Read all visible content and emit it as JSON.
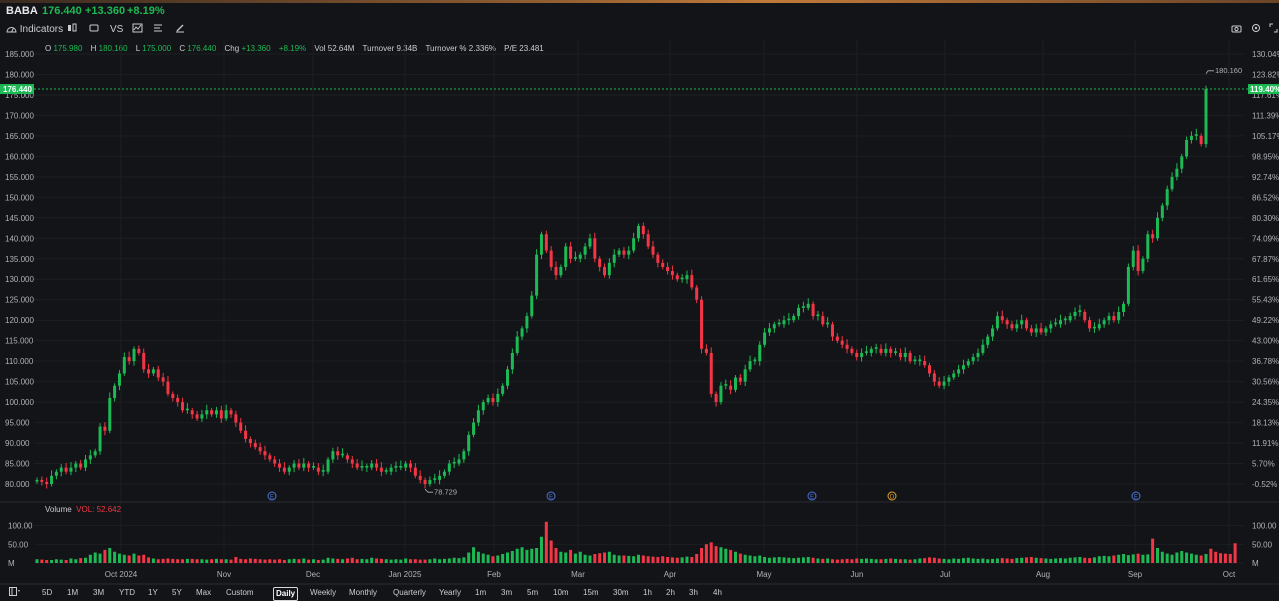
{
  "header": {
    "symbol": "BABA",
    "price": "176.440",
    "change": "+13.360",
    "change_pct": "+8.19%"
  },
  "toolbar": {
    "indicators_label": "Indicators",
    "vs_label": "VS"
  },
  "ohlc": {
    "o_label": "O",
    "o": "175.980",
    "h_label": "H",
    "h": "180.160",
    "l_label": "L",
    "l": "175.000",
    "c_label": "C",
    "c": "176.440",
    "chg_label": "Chg",
    "chg": "+13.360",
    "chg_pct": "+8.19%",
    "vol_label": "Vol",
    "vol": "52.64M",
    "turnover_label": "Turnover",
    "turnover": "9.34B",
    "turnover_pct_label": "Turnover %",
    "turnover_pct": "2.336%",
    "pe_label": "P/E",
    "pe": "23.481"
  },
  "volume_panel": {
    "title": "Volume",
    "vol_label": "VOL:",
    "vol_value": "52.642"
  },
  "timeframes": [
    "5D",
    "1M",
    "3M",
    "YTD",
    "1Y",
    "5Y",
    "Max",
    "Custom"
  ],
  "periods": [
    "Daily",
    "Weekly",
    "Monthly",
    "Quarterly",
    "Yearly"
  ],
  "active_period": "Daily",
  "intervals": [
    "1m",
    "3m",
    "5m",
    "10m",
    "15m",
    "30m",
    "1h",
    "2h",
    "3h",
    "4h"
  ],
  "colors": {
    "up": "#1db954",
    "down": "#f23645",
    "background": "#131417",
    "grid": "#1f2126"
  },
  "chart_data": {
    "type": "candlestick",
    "title": "BABA",
    "y_ticks": [
      "185.000",
      "180.000",
      "175.000",
      "170.000",
      "165.000",
      "160.000",
      "155.000",
      "150.000",
      "145.000",
      "140.000",
      "135.000",
      "130.000",
      "125.000",
      "120.000",
      "115.000",
      "110.000",
      "105.000",
      "100.000",
      "95.000",
      "90.000",
      "85.000",
      "80.000"
    ],
    "ylim": [
      78,
      186
    ],
    "pct_ticks": [
      "130.04%",
      "123.82%",
      "117.61%",
      "111.39%",
      "105.17%",
      "98.95%",
      "92.74%",
      "86.52%",
      "80.30%",
      "74.09%",
      "67.87%",
      "61.65%",
      "55.43%",
      "49.22%",
      "43.00%",
      "36.78%",
      "30.56%",
      "24.35%",
      "18.13%",
      "11.91%",
      "5.70%",
      "-0.52%"
    ],
    "x_labels": [
      "Oct 2024",
      "Nov",
      "Dec",
      "Jan 2025",
      "Feb",
      "Mar",
      "Apr",
      "May",
      "Jun",
      "Jul",
      "Aug",
      "Sep",
      "Oct"
    ],
    "current_price_label": "176.440",
    "current_pct_label": "119.40%",
    "current_price": 176.44,
    "high_annotation": "180.160",
    "high_value": 180.16,
    "low_annotation": "78.729",
    "low_value": 78.729,
    "event_markers": [
      "E",
      "E",
      "E",
      "D",
      "E"
    ],
    "vol_ticks": [
      "100.00",
      "50.00",
      "M"
    ],
    "vol_ylim": [
      0,
      120
    ],
    "closes": [
      81,
      80.5,
      80,
      82,
      83,
      84,
      83,
      84,
      85,
      84,
      86,
      87,
      88,
      94,
      93,
      101,
      104,
      107,
      111,
      110,
      113,
      112,
      108,
      107,
      108,
      106,
      105,
      102,
      101,
      100,
      98,
      98,
      97,
      96,
      97,
      98,
      97,
      98,
      96,
      98,
      97,
      95,
      93,
      91,
      90,
      89,
      88,
      87,
      86,
      85,
      84,
      83,
      84,
      85,
      84,
      85,
      84,
      84,
      83,
      83,
      86,
      88,
      87,
      87,
      86,
      85,
      84,
      84,
      84,
      85,
      84,
      83,
      83,
      84,
      84,
      84,
      85,
      84,
      82,
      81,
      80,
      81,
      81,
      82,
      83,
      85,
      85,
      86,
      88,
      92,
      95,
      98,
      100,
      101,
      100,
      102,
      104,
      108,
      112,
      116,
      118,
      121,
      126,
      136,
      141,
      137,
      133,
      131,
      133,
      138,
      135,
      135,
      136,
      138,
      140,
      135,
      133,
      131,
      134,
      136,
      137,
      136,
      137,
      140,
      143,
      141,
      138,
      136,
      134,
      133,
      132,
      131,
      130,
      130,
      131,
      128,
      125,
      113,
      112,
      102,
      100,
      104,
      104,
      103,
      106,
      105,
      108,
      110,
      110,
      114,
      117,
      118,
      119,
      119,
      120,
      120,
      121,
      123,
      123,
      124,
      121,
      121,
      119,
      119,
      116,
      115,
      114,
      113,
      112,
      111,
      112,
      112,
      113,
      113,
      112,
      113,
      112,
      112,
      111,
      112,
      110,
      110,
      110,
      109,
      107,
      105,
      104,
      105,
      106,
      107,
      108,
      109,
      110,
      111,
      112,
      114,
      116,
      118,
      121,
      120,
      119,
      118,
      119,
      120,
      118,
      117,
      118,
      117,
      118,
      119,
      119,
      120,
      120,
      121,
      122,
      122,
      120,
      118,
      118,
      119,
      120,
      121,
      120,
      122,
      124,
      133,
      137,
      132,
      135,
      141,
      140,
      145,
      148,
      152,
      155,
      157,
      160,
      164,
      165,
      165,
      163,
      176.44
    ],
    "volumes": [
      10,
      9,
      8,
      8,
      10,
      9,
      8,
      12,
      10,
      13,
      14,
      22,
      28,
      25,
      35,
      40,
      30,
      25,
      22,
      20,
      25,
      20,
      22,
      15,
      12,
      10,
      11,
      12,
      11,
      10,
      10,
      11,
      11,
      10,
      10,
      9,
      10,
      11,
      10,
      10,
      9,
      16,
      11,
      10,
      12,
      11,
      10,
      9,
      10,
      9,
      10,
      8,
      10,
      11,
      10,
      12,
      9,
      10,
      8,
      9,
      14,
      12,
      11,
      10,
      12,
      14,
      10,
      11,
      10,
      14,
      12,
      11,
      10,
      9,
      10,
      9,
      12,
      10,
      10,
      9,
      9,
      10,
      12,
      10,
      11,
      12,
      14,
      13,
      15,
      28,
      42,
      30,
      25,
      22,
      18,
      20,
      24,
      28,
      32,
      38,
      42,
      35,
      38,
      40,
      70,
      110,
      60,
      40,
      30,
      28,
      35,
      25,
      30,
      22,
      20,
      24,
      26,
      28,
      30,
      22,
      20,
      20,
      19,
      18,
      22,
      20,
      18,
      17,
      16,
      18,
      16,
      15,
      14,
      15,
      17,
      16,
      24,
      40,
      50,
      55,
      45,
      42,
      38,
      35,
      30,
      25,
      22,
      20,
      18,
      20,
      16,
      14,
      15,
      16,
      15,
      14,
      13,
      14,
      15,
      16,
      14,
      12,
      11,
      12,
      10,
      9,
      10,
      11,
      10,
      12,
      11,
      12,
      11,
      10,
      10,
      11,
      12,
      11,
      10,
      10,
      9,
      10,
      12,
      13,
      15,
      14,
      12,
      11,
      10,
      12,
      11,
      13,
      14,
      12,
      11,
      12,
      10,
      11,
      12,
      13,
      12,
      11,
      13,
      14,
      15,
      16,
      14,
      13,
      12,
      11,
      12,
      13,
      12,
      14,
      15,
      16,
      14,
      13,
      15,
      18,
      19,
      18,
      20,
      22,
      24,
      21,
      23,
      25,
      22,
      23,
      65,
      40,
      30,
      25,
      22,
      28,
      32,
      28,
      25,
      22,
      20,
      24,
      38,
      30,
      26,
      25,
      24,
      52.64
    ]
  }
}
